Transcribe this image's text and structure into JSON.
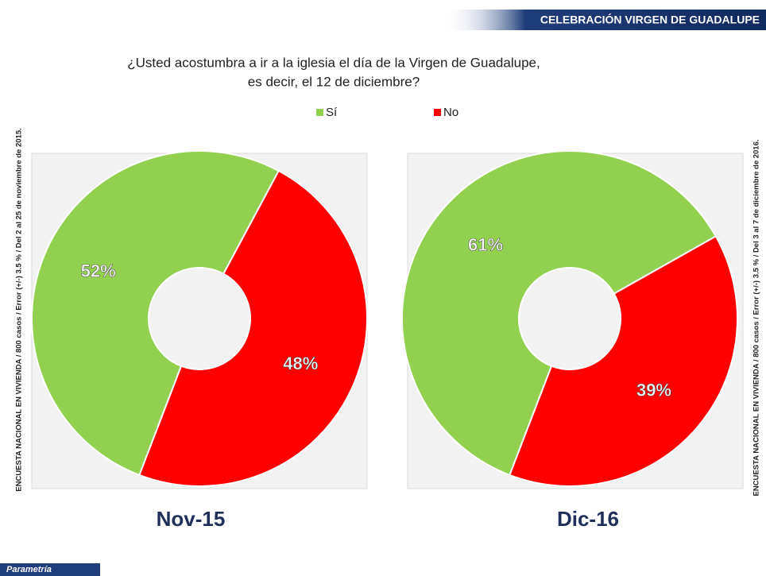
{
  "header": "CELEBRACIÓN VIRGEN DE GUADALUPE",
  "question": [
    "¿Usted acostumbra a ir a la iglesia el día de la Virgen de Guadalupe,",
    "es decir, el 12 de diciembre?"
  ],
  "side_notes": [
    "ENCUESTA NACIONAL EN VIVIENDA / 800 casos / Error (+/-) 3.5 % / Del 2 al 25 de noviembre de 2015.",
    "ENCUESTA NACIONAL EN VIVIENDA / 800 casos / Error (+/-) 3.5 % / Del 3 al 7 de diciembre de 2016."
  ],
  "brand": "Parametría",
  "chart_data": [
    {
      "type": "donut",
      "title": "Nov-15",
      "categories": [
        "Sí",
        "No"
      ],
      "values": [
        52,
        48
      ],
      "value_labels": [
        "52%",
        "48%"
      ],
      "colors": [
        "#92d050",
        "#ff0000"
      ]
    },
    {
      "type": "donut",
      "title": "Dic-16",
      "categories": [
        "Sí",
        "No"
      ],
      "values": [
        61,
        39
      ],
      "value_labels": [
        "61%",
        "39%"
      ],
      "colors": [
        "#92d050",
        "#ff0000"
      ]
    }
  ]
}
